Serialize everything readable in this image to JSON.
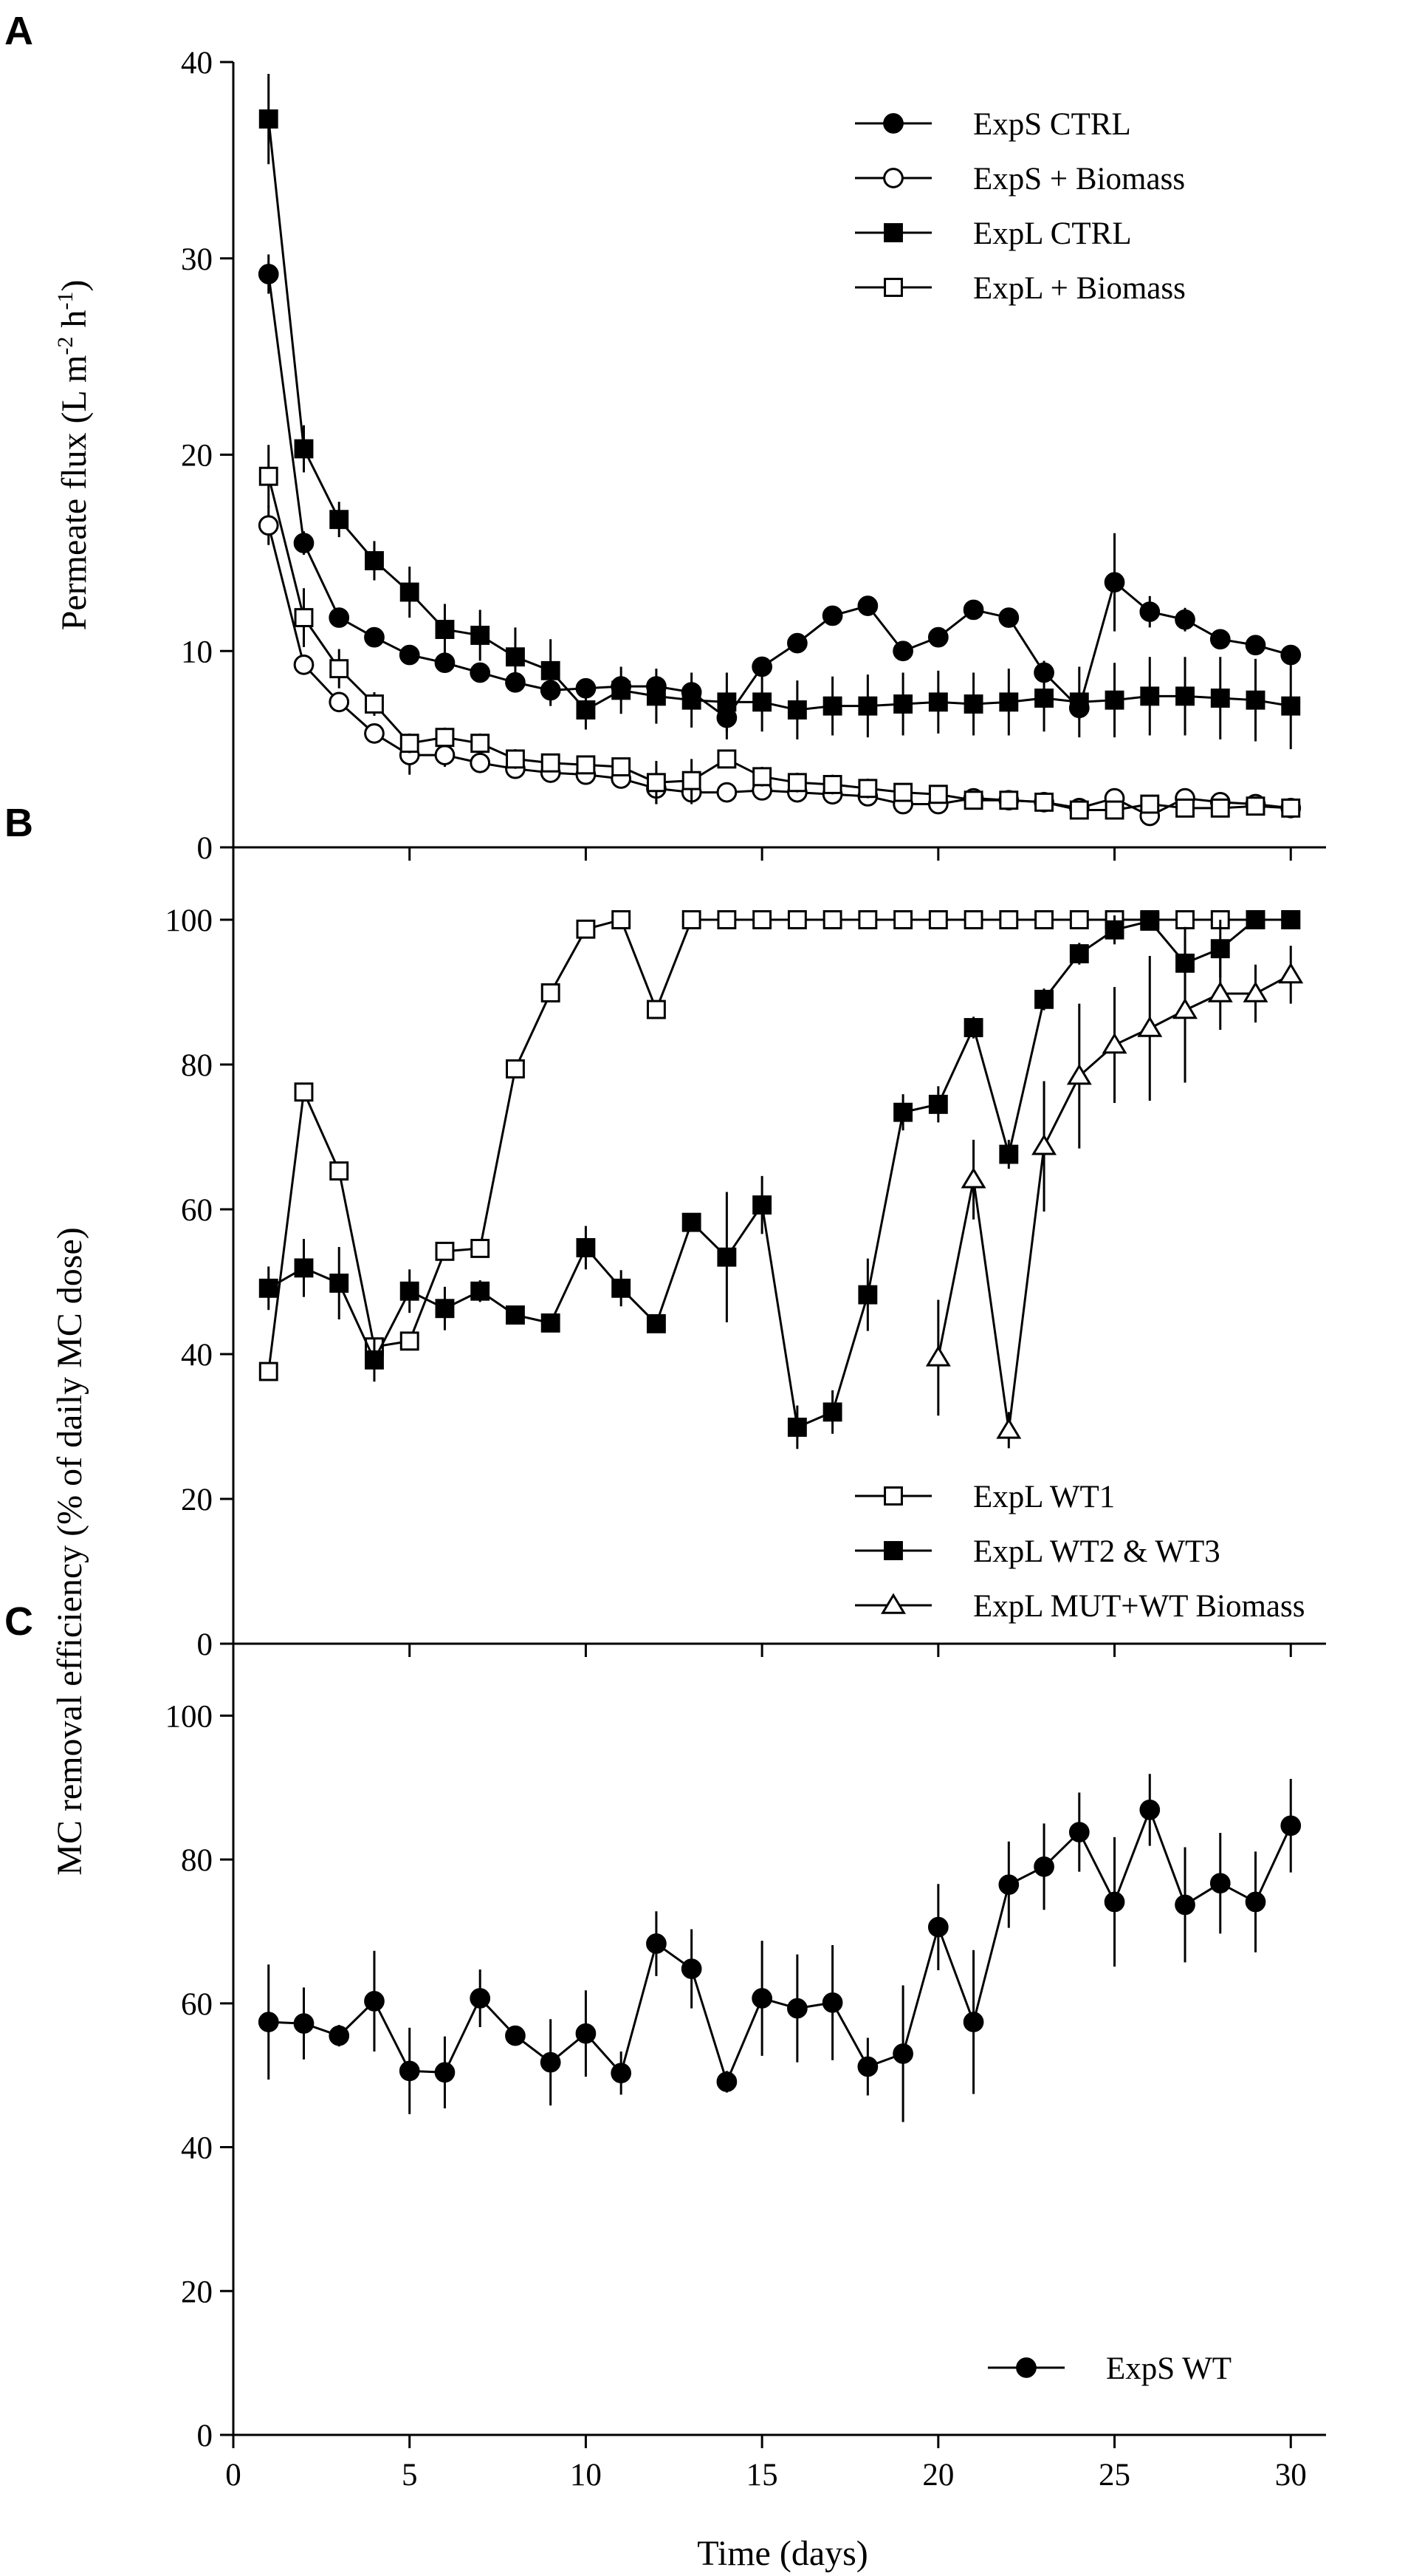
{
  "chart_data": {
    "shared_x": {
      "label": "Time (days)",
      "range": [
        0,
        31
      ],
      "ticks": [
        0,
        5,
        10,
        15,
        20,
        25,
        30
      ]
    },
    "panels": [
      {
        "letter": "A",
        "type": "line",
        "ylabel_parts": {
          "main": "Permeate flux (L m",
          "sup1": "-2",
          "mid": " h",
          "sup2": "-1",
          "end": ")"
        },
        "ylim": [
          0,
          40
        ],
        "yticks": [
          0,
          10,
          20,
          30,
          40
        ],
        "legend_placement": "top-right",
        "series": [
          {
            "name": "ExpS CTRL",
            "marker": "circle",
            "filled": true,
            "x": [
              1,
              2,
              3,
              4,
              5,
              6,
              7,
              8,
              9,
              10,
              11,
              12,
              13,
              14,
              15,
              16,
              17,
              18,
              19,
              20,
              21,
              22,
              23,
              24,
              25,
              26,
              27,
              28,
              29,
              30
            ],
            "y": [
              29.2,
              15.5,
              11.7,
              10.7,
              9.8,
              9.4,
              8.9,
              8.4,
              8.0,
              8.1,
              8.2,
              8.2,
              7.9,
              6.6,
              9.2,
              10.4,
              11.8,
              12.3,
              10.0,
              10.7,
              12.1,
              11.7,
              8.9,
              7.1,
              13.5,
              12.0,
              11.6,
              10.6,
              10.3,
              9.8
            ],
            "err": [
              1.0,
              0.6,
              0.4,
              0.4,
              0.4,
              0.4,
              0.4,
              0.5,
              0.8,
              0.5,
              0.5,
              0.5,
              0.5,
              1.1,
              0.5,
              0.4,
              0.3,
              0.3,
              0.4,
              0.3,
              0.3,
              0.3,
              0.6,
              0.6,
              2.5,
              0.8,
              0.6,
              0.5,
              0.5,
              0.5
            ]
          },
          {
            "name": "ExpS + Biomass",
            "marker": "circle",
            "filled": false,
            "x": [
              1,
              2,
              3,
              4,
              5,
              6,
              7,
              8,
              9,
              10,
              11,
              12,
              13,
              14,
              15,
              16,
              17,
              18,
              19,
              20,
              21,
              22,
              23,
              24,
              25,
              26,
              27,
              28,
              29,
              30
            ],
            "y": [
              16.4,
              9.3,
              7.4,
              5.8,
              4.7,
              4.7,
              4.3,
              4.0,
              3.8,
              3.7,
              3.5,
              3.0,
              2.8,
              2.8,
              2.9,
              2.8,
              2.7,
              2.6,
              2.2,
              2.2,
              2.5,
              2.4,
              2.3,
              2.0,
              2.5,
              1.6,
              2.5,
              2.3,
              2.2,
              2.0
            ],
            "err": [
              1.0,
              0.5,
              0.4,
              0.4,
              1.0,
              0.6,
              0.4,
              0.4,
              0.4,
              0.4,
              0.4,
              0.8,
              0.6,
              0.5,
              0.5,
              0.4,
              0.4,
              0.4,
              0.4,
              0.4,
              0.4,
              0.4,
              0.4,
              0.3,
              0.4,
              0.5,
              0.4,
              0.4,
              0.4,
              0.4
            ]
          },
          {
            "name": "ExpL CTRL",
            "marker": "square",
            "filled": true,
            "x": [
              1,
              2,
              3,
              4,
              5,
              6,
              7,
              8,
              9,
              10,
              11,
              12,
              13,
              14,
              15,
              16,
              17,
              18,
              19,
              20,
              21,
              22,
              23,
              24,
              25,
              26,
              27,
              28,
              29,
              30
            ],
            "y": [
              37.1,
              20.3,
              16.7,
              14.6,
              13.0,
              11.1,
              10.8,
              9.7,
              9.0,
              7.0,
              8.0,
              7.7,
              7.5,
              7.4,
              7.4,
              7.0,
              7.2,
              7.2,
              7.3,
              7.4,
              7.3,
              7.4,
              7.6,
              7.4,
              7.5,
              7.7,
              7.7,
              7.6,
              7.5,
              7.2
            ],
            "err": [
              2.3,
              1.2,
              0.9,
              1.0,
              1.3,
              1.3,
              1.3,
              1.5,
              1.6,
              1.0,
              1.2,
              1.4,
              1.4,
              1.5,
              1.5,
              1.5,
              1.5,
              1.6,
              1.6,
              1.6,
              1.6,
              1.7,
              1.7,
              1.8,
              1.9,
              2.0,
              2.0,
              2.1,
              2.1,
              2.2
            ]
          },
          {
            "name": "ExpL + Biomass",
            "marker": "square",
            "filled": false,
            "x": [
              1,
              2,
              3,
              4,
              5,
              6,
              7,
              8,
              9,
              10,
              11,
              12,
              13,
              14,
              15,
              16,
              17,
              18,
              19,
              20,
              21,
              22,
              23,
              24,
              25,
              26,
              27,
              28,
              29,
              30
            ],
            "y": [
              18.9,
              11.7,
              9.1,
              7.3,
              5.3,
              5.6,
              5.3,
              4.5,
              4.3,
              4.2,
              4.1,
              3.3,
              3.4,
              4.5,
              3.6,
              3.3,
              3.2,
              3.0,
              2.8,
              2.7,
              2.4,
              2.4,
              2.3,
              1.9,
              1.9,
              2.2,
              2.0,
              2.0,
              2.1,
              2.0
            ],
            "err": [
              1.6,
              1.5,
              1.0,
              0.6,
              0.5,
              0.5,
              0.5,
              0.5,
              0.4,
              0.4,
              0.4,
              1.1,
              1.1,
              0.4,
              0.5,
              0.5,
              0.5,
              0.5,
              0.4,
              0.4,
              0.4,
              0.4,
              0.4,
              0.3,
              0.3,
              0.4,
              0.4,
              0.4,
              0.4,
              0.4
            ]
          }
        ]
      },
      {
        "letter": "B",
        "type": "line",
        "ylim": [
          0,
          110
        ],
        "yticks": [
          0,
          20,
          40,
          60,
          80,
          100
        ],
        "legend_placement": "bottom-right",
        "series": [
          {
            "name": "ExpL WT1",
            "marker": "square",
            "filled": false,
            "x": [
              1,
              2,
              3,
              4,
              5,
              6,
              7,
              8,
              9,
              10,
              11,
              12,
              13,
              14,
              15,
              16,
              17,
              18,
              19,
              20,
              21,
              22,
              23,
              24,
              25,
              26,
              27,
              28,
              29,
              30
            ],
            "y": [
              37.6,
              76.2,
              65.3,
              41.0,
              41.8,
              54.2,
              54.6,
              79.4,
              89.9,
              98.7,
              100,
              87.6,
              100,
              100,
              100,
              100,
              100,
              100,
              100,
              100,
              100,
              100,
              100,
              100,
              100,
              100,
              100,
              100,
              100,
              100
            ],
            "err": [
              0,
              0,
              0,
              0,
              0,
              0,
              0,
              0,
              0,
              0,
              0,
              0,
              0,
              0,
              0,
              0,
              0,
              0,
              0,
              0,
              0,
              0,
              0,
              0,
              0,
              0,
              0,
              0,
              0,
              0
            ]
          },
          {
            "name": "ExpL WT2 & WT3",
            "marker": "square",
            "filled": true,
            "x": [
              1,
              2,
              3,
              4,
              5,
              6,
              7,
              8,
              9,
              10,
              11,
              12,
              13,
              14,
              15,
              16,
              17,
              18,
              19,
              20,
              21,
              22,
              23,
              24,
              25,
              26,
              27,
              28,
              29,
              30
            ],
            "y": [
              49.1,
              51.9,
              49.8,
              39.2,
              48.7,
              46.3,
              48.7,
              45.4,
              44.3,
              54.7,
              49.1,
              44.2,
              58.2,
              53.4,
              60.6,
              29.9,
              32.0,
              48.2,
              73.4,
              74.5,
              85.1,
              67.6,
              89.0,
              95.3,
              98.6,
              99.8,
              94.0,
              96.0,
              100,
              100
            ],
            "err": [
              3.0,
              4.0,
              5.0,
              3.0,
              3.0,
              3.0,
              1.5,
              1.0,
              1.0,
              3.0,
              2.5,
              1.0,
              1.0,
              9.0,
              4.0,
              3.0,
              3.0,
              5.0,
              2.5,
              2.5,
              1.5,
              2.0,
              1.5,
              1.5,
              2.0,
              1.0,
              5.0,
              4.0,
              1.0,
              1.0
            ]
          },
          {
            "name": "ExpL MUT+WT Biomass",
            "marker": "triangle",
            "filled": false,
            "x": [
              20,
              21,
              22,
              23,
              24,
              25,
              26,
              27,
              28,
              29,
              30
            ],
            "y": [
              39.5,
              64.1,
              29.5,
              68.7,
              78.4,
              82.7,
              85.0,
              87.5,
              89.8,
              89.8,
              92.4
            ],
            "err": [
              8.0,
              5.5,
              2.5,
              9.0,
              10.0,
              8.0,
              10.0,
              10.0,
              5.0,
              4.0,
              4.0
            ]
          }
        ]
      },
      {
        "letter": "C",
        "type": "line",
        "ylim": [
          0,
          110
        ],
        "yticks": [
          0,
          20,
          40,
          60,
          80,
          100
        ],
        "legend_placement": "bottom-right",
        "series": [
          {
            "name": "ExpS WT",
            "marker": "circle",
            "filled": true,
            "x": [
              1,
              2,
              3,
              4,
              5,
              6,
              7,
              8,
              9,
              10,
              11,
              12,
              13,
              14,
              15,
              16,
              17,
              18,
              19,
              20,
              21,
              22,
              23,
              24,
              25,
              26,
              27,
              28,
              29,
              30
            ],
            "y": [
              57.4,
              57.2,
              55.5,
              60.3,
              50.6,
              50.4,
              60.7,
              55.5,
              51.8,
              55.8,
              50.3,
              68.3,
              64.8,
              49.1,
              60.7,
              59.3,
              60.1,
              51.2,
              53.0,
              70.6,
              57.4,
              76.5,
              79.0,
              83.8,
              74.1,
              86.9,
              73.7,
              76.7,
              74.1,
              84.7
            ],
            "err": [
              8.0,
              5.0,
              1.5,
              7.0,
              6.0,
              5.0,
              4.0,
              1.0,
              6.0,
              6.0,
              3.0,
              4.5,
              5.5,
              1.5,
              8.0,
              7.5,
              8.0,
              4.0,
              9.5,
              6.0,
              10.0,
              6.0,
              6.0,
              5.5,
              9.0,
              5.0,
              8.0,
              7.0,
              7.0,
              6.5
            ]
          }
        ]
      }
    ],
    "shared_ylabel": "MC removal efficiency (% of daily MC dose)"
  }
}
